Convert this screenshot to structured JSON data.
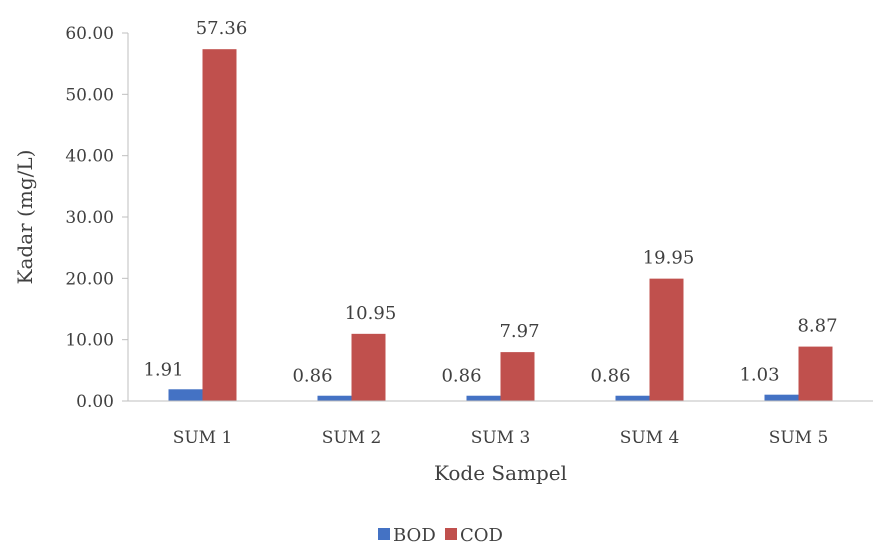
{
  "chart_data": {
    "type": "bar",
    "categories": [
      "SUM 1",
      "SUM 2",
      "SUM 3",
      "SUM 4",
      "SUM 5"
    ],
    "series": [
      {
        "name": "BOD",
        "values": [
          1.91,
          0.86,
          0.86,
          0.86,
          1.03
        ],
        "color": "#4472C4"
      },
      {
        "name": "COD",
        "values": [
          57.36,
          10.95,
          7.97,
          19.95,
          8.87
        ],
        "color": "#C0504D"
      }
    ],
    "data_labels": [
      [
        "1.91",
        "0.86",
        "0.86",
        "0.86",
        "1.03"
      ],
      [
        "57.36",
        "10.95",
        "7.97",
        "19.95",
        "8.87"
      ]
    ],
    "y_ticks": [
      "0.00",
      "10.00",
      "20.00",
      "30.00",
      "40.00",
      "50.00",
      "60.00"
    ],
    "ylim": [
      0,
      60
    ],
    "xlabel": "Kode Sampel",
    "ylabel": "Kadar (mg/L)",
    "title": "",
    "grid": false,
    "legend_position": "bottom"
  }
}
